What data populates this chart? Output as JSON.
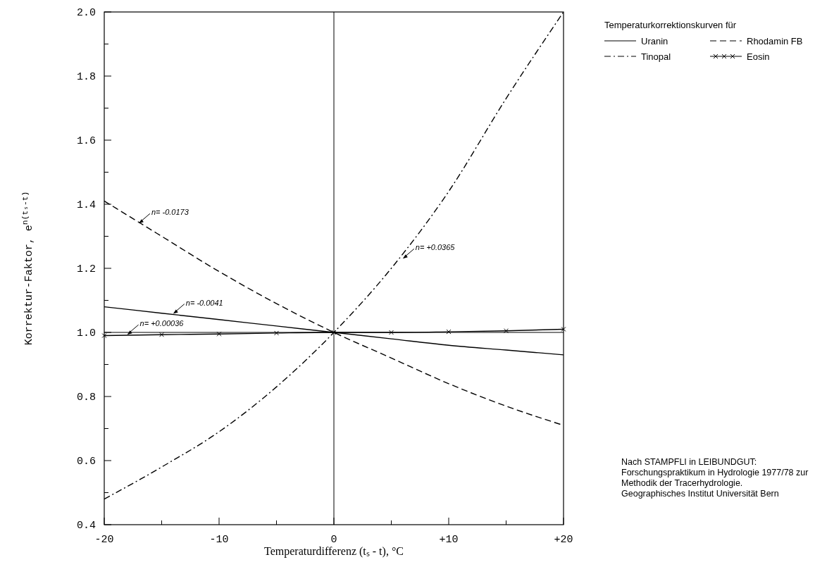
{
  "chart_data": {
    "type": "line",
    "xlabel": "Temperaturdifferenz (tₛ - t), °C",
    "ylabel": "Korrektur-Faktor, e$^{n(tₛ-t)}$",
    "legend_title": "Temperaturkorrektionskurven für",
    "legend": "right",
    "grid": false,
    "x": [
      -20,
      -15,
      -10,
      -5,
      0,
      5,
      10,
      15,
      20
    ],
    "xlim": [
      -20,
      20
    ],
    "xticks": [
      -20,
      {
        "value": -15,
        "label": null
      },
      -10,
      {
        "value": -5,
        "label": null
      },
      0,
      {
        "value": 5,
        "label": null
      },
      {
        "value": 10,
        "label": "+10"
      },
      {
        "value": 15,
        "label": null
      },
      {
        "value": 20,
        "label": "+20"
      }
    ],
    "ylim": [
      0.4,
      2.0
    ],
    "yticks": [
      0.4,
      {
        "value": 0.5,
        "label": null
      },
      0.6,
      {
        "value": 0.7,
        "label": null
      },
      0.8,
      {
        "value": 0.9,
        "label": null
      },
      {
        "value": 1.0,
        "label": "1.0"
      },
      {
        "value": 1.1,
        "label": null
      },
      1.2,
      {
        "value": 1.3,
        "label": null
      },
      1.4,
      {
        "value": 1.5,
        "label": null
      },
      1.6,
      {
        "value": 1.7,
        "label": null
      },
      1.8,
      {
        "value": 1.9,
        "label": null
      },
      {
        "value": 2.0,
        "label": "2.0"
      }
    ],
    "series": [
      {
        "name": "Uranin",
        "color": "#000000",
        "line_style": "solid",
        "marker": "none",
        "values": [
          1.08,
          1.06,
          1.04,
          1.02,
          1.0,
          0.98,
          0.96,
          0.945,
          0.93
        ]
      },
      {
        "name": "Rhodamin FB",
        "color": "#000000",
        "line_style": "dashed",
        "marker": "none",
        "values": [
          1.41,
          1.3,
          1.19,
          1.09,
          1.0,
          0.92,
          0.84,
          0.77,
          0.71
        ]
      },
      {
        "name": "Tinopal",
        "color": "#000000",
        "line_style": "dashdot",
        "marker": "none",
        "values": [
          0.48,
          0.58,
          0.69,
          0.83,
          1.0,
          1.2,
          1.44,
          1.73,
          2.0
        ]
      },
      {
        "name": "Eosin",
        "color": "#000000",
        "line_style": "solid",
        "marker": "cross",
        "values": [
          0.99,
          0.993,
          0.995,
          0.998,
          1.0,
          1.0,
          1.002,
          1.005,
          1.01
        ]
      }
    ],
    "ref_lines": [
      {
        "axis": "x",
        "value": 0,
        "color": "#000000"
      },
      {
        "axis": "y",
        "value": 1.0,
        "color": "#000000"
      }
    ],
    "annotations": [
      {
        "text": "n= -0.0173",
        "x": -17,
        "y": 1.34
      },
      {
        "text": "n= +0.0365",
        "x": 6,
        "y": 1.23
      },
      {
        "text": "n= -0.0041",
        "x": -14,
        "y": 1.058
      },
      {
        "text": "n= +0.00036",
        "x": -18,
        "y": 0.993
      },
      "Nach STAMPFLI in LEIBUNDGUT:\nForschungspraktikum in Hydrologie 1977/78 zur\nMethodik der Tracerhydrologie.\nGeographisches Institut Universität Bern"
    ]
  }
}
